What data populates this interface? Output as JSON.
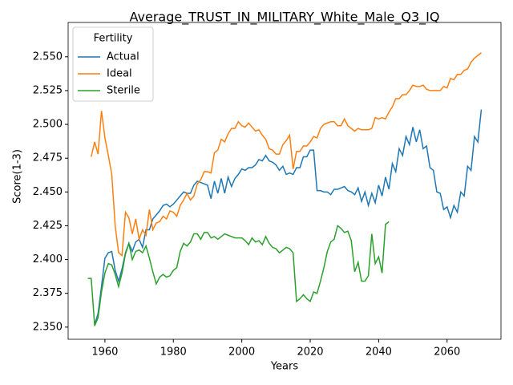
{
  "chart_data": {
    "type": "line",
    "title": "Average_TRUST_IN_MILITARY_White_Male_Q3_IQ",
    "x_label": "Years",
    "y_label": "Score(1-3)",
    "legend_title": "Fertility",
    "legend": "upper left",
    "x": [
      1955,
      1956,
      1957,
      1958,
      1959,
      1960,
      1961,
      1962,
      1963,
      1964,
      1965,
      1966,
      1967,
      1968,
      1969,
      1970,
      1971,
      1972,
      1973,
      1974,
      1975,
      1976,
      1977,
      1978,
      1979,
      1980,
      1981,
      1982,
      1983,
      1984,
      1985,
      1986,
      1987,
      1988,
      1989,
      1990,
      1991,
      1992,
      1993,
      1994,
      1995,
      1996,
      1997,
      1998,
      1999,
      2000,
      2001,
      2002,
      2003,
      2004,
      2005,
      2006,
      2007,
      2008,
      2009,
      2010,
      2011,
      2012,
      2013,
      2014,
      2015,
      2016,
      2017,
      2018,
      2019,
      2020,
      2021,
      2022,
      2023,
      2024,
      2025,
      2026,
      2027,
      2028,
      2029,
      2030,
      2031,
      2032,
      2033,
      2034,
      2035,
      2036,
      2037,
      2038,
      2039,
      2040,
      2041,
      2042,
      2043,
      2044,
      2045,
      2046,
      2047,
      2048,
      2049,
      2050,
      2051,
      2052,
      2053,
      2054,
      2055,
      2056,
      2057,
      2058,
      2059,
      2060,
      2061,
      2062,
      2063,
      2064,
      2065,
      2066,
      2067,
      2068,
      2069,
      2070
    ],
    "series": [
      {
        "name": "Actual",
        "color": "#1f77b4",
        "values": [
          null,
          null,
          2.352,
          2.36,
          2.38,
          2.401,
          2.405,
          2.406,
          2.392,
          2.384,
          2.393,
          2.405,
          2.412,
          2.406,
          2.413,
          2.415,
          2.409,
          2.422,
          2.422,
          2.43,
          2.433,
          2.436,
          2.44,
          2.441,
          2.439,
          2.441,
          2.444,
          2.447,
          2.45,
          2.449,
          2.449,
          2.455,
          2.458,
          2.457,
          2.456,
          2.455,
          2.445,
          2.458,
          2.449,
          2.46,
          2.449,
          2.461,
          2.454,
          2.46,
          2.463,
          2.467,
          2.466,
          2.468,
          2.468,
          2.47,
          2.474,
          2.473,
          2.477,
          2.473,
          2.472,
          2.47,
          2.466,
          2.469,
          2.463,
          2.464,
          2.463,
          2.468,
          2.468,
          2.476,
          2.476,
          2.481,
          2.481,
          2.451,
          2.451,
          2.45,
          2.45,
          2.448,
          2.452,
          2.452,
          2.453,
          2.454,
          2.451,
          2.45,
          2.448,
          2.453,
          2.443,
          2.45,
          2.44,
          2.449,
          2.442,
          2.455,
          2.447,
          2.461,
          2.452,
          2.471,
          2.465,
          2.482,
          2.477,
          2.491,
          2.485,
          2.498,
          2.487,
          2.496,
          2.482,
          2.484,
          2.468,
          2.466,
          2.45,
          2.449,
          2.437,
          2.439,
          2.431,
          2.44,
          2.435,
          2.45,
          2.447,
          2.469,
          2.466,
          2.491,
          2.487,
          2.511
        ]
      },
      {
        "name": "Ideal",
        "color": "#ff7f0e",
        "values": [
          null,
          2.476,
          2.487,
          2.478,
          2.51,
          2.49,
          2.477,
          2.463,
          2.425,
          2.405,
          2.403,
          2.435,
          2.431,
          2.419,
          2.43,
          2.415,
          2.422,
          2.418,
          2.437,
          2.422,
          2.427,
          2.428,
          2.432,
          2.43,
          2.436,
          2.435,
          2.432,
          2.44,
          2.444,
          2.449,
          2.444,
          2.447,
          2.456,
          2.459,
          2.465,
          2.465,
          2.464,
          2.479,
          2.481,
          2.489,
          2.487,
          2.493,
          2.497,
          2.497,
          2.502,
          2.499,
          2.498,
          2.501,
          2.498,
          2.495,
          2.496,
          2.492,
          2.489,
          2.482,
          2.481,
          2.478,
          2.478,
          2.485,
          2.488,
          2.492,
          2.467,
          2.48,
          2.48,
          2.484,
          2.484,
          2.487,
          2.491,
          2.49,
          2.497,
          2.5,
          2.501,
          2.502,
          2.502,
          2.499,
          2.499,
          2.504,
          2.499,
          2.497,
          2.495,
          2.497,
          2.496,
          2.496,
          2.496,
          2.497,
          2.505,
          2.504,
          2.505,
          2.504,
          2.509,
          2.513,
          2.519,
          2.519,
          2.522,
          2.522,
          2.525,
          2.529,
          2.528,
          2.528,
          2.529,
          2.526,
          2.525,
          2.525,
          2.525,
          2.525,
          2.528,
          2.527,
          2.534,
          2.533,
          2.537,
          2.537,
          2.54,
          2.541,
          2.546,
          2.549,
          2.551,
          2.553
        ]
      },
      {
        "name": "Sterile",
        "color": "#2ca02c",
        "values": [
          2.386,
          2.386,
          2.351,
          2.357,
          2.376,
          2.39,
          2.397,
          2.396,
          2.389,
          2.38,
          2.39,
          2.404,
          2.412,
          2.4,
          2.406,
          2.407,
          2.405,
          2.41,
          2.401,
          2.391,
          2.382,
          2.387,
          2.389,
          2.387,
          2.388,
          2.392,
          2.394,
          2.406,
          2.412,
          2.41,
          2.413,
          2.419,
          2.419,
          2.415,
          2.42,
          2.42,
          2.416,
          2.417,
          2.415,
          2.417,
          2.419,
          2.418,
          2.417,
          2.416,
          2.416,
          2.416,
          2.414,
          2.411,
          2.416,
          2.413,
          2.414,
          2.411,
          2.417,
          2.412,
          2.409,
          2.408,
          2.405,
          2.407,
          2.409,
          2.408,
          2.405,
          2.369,
          2.371,
          2.374,
          2.371,
          2.369,
          2.376,
          2.375,
          2.384,
          2.394,
          2.406,
          2.413,
          2.415,
          2.425,
          2.423,
          2.42,
          2.421,
          2.414,
          2.391,
          2.398,
          2.384,
          2.384,
          2.388,
          2.419,
          2.397,
          2.402,
          2.39,
          2.426,
          2.428,
          null,
          null,
          null,
          null,
          null,
          null,
          null,
          null,
          null,
          null,
          null,
          null,
          null,
          null,
          null,
          null,
          null,
          null,
          null,
          null,
          null,
          null,
          null,
          null,
          null,
          null,
          null
        ]
      }
    ],
    "xlim": [
      1949.25,
      2075.75
    ],
    "xticks": [
      1960,
      1980,
      2000,
      2020,
      2040,
      2060
    ],
    "ylim": [
      2.341,
      2.5754
    ],
    "yticks": [
      {
        "value": 2.35,
        "label": "2.350"
      },
      {
        "value": 2.375,
        "label": "2.375"
      },
      {
        "value": 2.4,
        "label": "2.400"
      },
      {
        "value": 2.425,
        "label": "2.425"
      },
      {
        "value": 2.45,
        "label": "2.450"
      },
      {
        "value": 2.475,
        "label": "2.475"
      },
      {
        "value": 2.5,
        "label": "2.500"
      },
      {
        "value": 2.525,
        "label": "2.525"
      },
      {
        "value": 2.55,
        "label": "2.550"
      }
    ],
    "grid": false
  }
}
